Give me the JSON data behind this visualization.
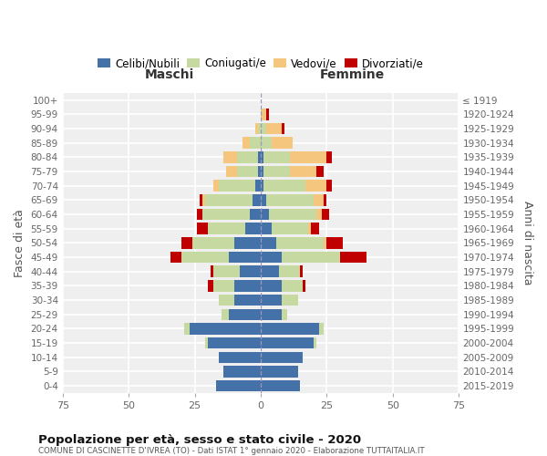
{
  "age_groups_bottom_to_top": [
    "0-4",
    "5-9",
    "10-14",
    "15-19",
    "20-24",
    "25-29",
    "30-34",
    "35-39",
    "40-44",
    "45-49",
    "50-54",
    "55-59",
    "60-64",
    "65-69",
    "70-74",
    "75-79",
    "80-84",
    "85-89",
    "90-94",
    "95-99",
    "100+"
  ],
  "birth_years_bottom_to_top": [
    "2015-2019",
    "2010-2014",
    "2005-2009",
    "2000-2004",
    "1995-1999",
    "1990-1994",
    "1985-1989",
    "1980-1984",
    "1975-1979",
    "1970-1974",
    "1965-1969",
    "1960-1964",
    "1955-1959",
    "1950-1954",
    "1945-1949",
    "1940-1944",
    "1935-1939",
    "1930-1934",
    "1925-1929",
    "1920-1924",
    "≤ 1919"
  ],
  "colors": {
    "celibi": "#4472a8",
    "coniugati": "#c5d9a0",
    "vedovi": "#f5c77e",
    "divorziati": "#c00000"
  },
  "m_celibi": [
    17,
    14,
    16,
    20,
    27,
    12,
    10,
    10,
    8,
    12,
    10,
    6,
    4,
    3,
    2,
    1,
    1,
    0,
    0,
    0,
    0
  ],
  "m_coniugati": [
    0,
    0,
    0,
    1,
    2,
    3,
    6,
    8,
    10,
    18,
    16,
    14,
    18,
    18,
    14,
    8,
    8,
    4,
    1,
    0,
    0
  ],
  "m_vedovi": [
    0,
    0,
    0,
    0,
    0,
    0,
    0,
    0,
    0,
    0,
    0,
    0,
    0,
    1,
    2,
    4,
    5,
    3,
    1,
    0,
    0
  ],
  "m_divorziati": [
    0,
    0,
    0,
    0,
    0,
    0,
    0,
    2,
    1,
    4,
    4,
    4,
    2,
    1,
    0,
    0,
    0,
    0,
    0,
    0,
    0
  ],
  "f_nubili": [
    15,
    14,
    16,
    20,
    22,
    8,
    8,
    8,
    7,
    8,
    6,
    4,
    3,
    2,
    1,
    1,
    1,
    0,
    0,
    0,
    0
  ],
  "f_coniugate": [
    0,
    0,
    0,
    1,
    2,
    2,
    6,
    8,
    8,
    22,
    18,
    14,
    18,
    18,
    16,
    10,
    10,
    4,
    2,
    0,
    0
  ],
  "f_vedove": [
    0,
    0,
    0,
    0,
    0,
    0,
    0,
    0,
    0,
    0,
    1,
    1,
    2,
    4,
    8,
    10,
    14,
    8,
    6,
    2,
    0
  ],
  "f_divorziate": [
    0,
    0,
    0,
    0,
    0,
    0,
    0,
    1,
    1,
    10,
    6,
    3,
    3,
    1,
    2,
    3,
    2,
    0,
    1,
    1,
    0
  ],
  "xlim": 75,
  "title": "Popolazione per età, sesso e stato civile - 2020",
  "subtitle": "COMUNE DI CASCINETTE D'IVREA (TO) - Dati ISTAT 1° gennaio 2020 - Elaborazione TUTTAITALIA.IT",
  "ylabel_left": "Fasce di età",
  "ylabel_right": "Anni di nascita",
  "xlabel_left": "Maschi",
  "xlabel_right": "Femmine",
  "bg_color": "#efefef",
  "grid_color": "#ffffff"
}
